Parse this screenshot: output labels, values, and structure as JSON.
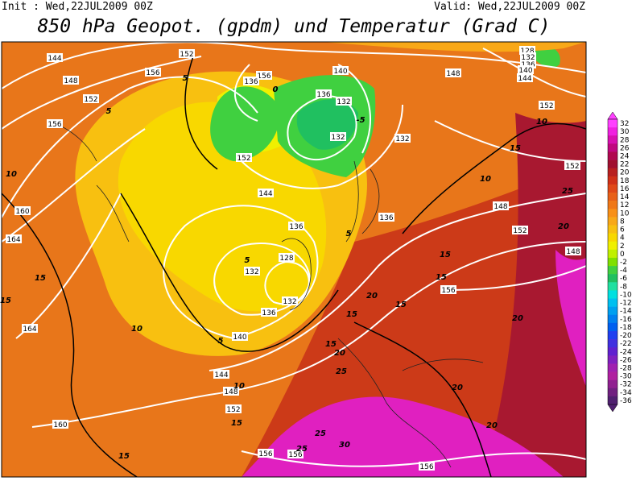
{
  "header": {
    "init": "Init : Wed,22JUL2009 00Z",
    "valid": "Valid: Wed,22JUL2009 00Z",
    "title": "850 hPa Geopot. (gpdm) und Temperatur (Grad C)"
  },
  "colorbar": {
    "labels": [
      32,
      30,
      28,
      26,
      24,
      22,
      20,
      18,
      16,
      14,
      12,
      10,
      8,
      6,
      4,
      2,
      0,
      -2,
      -4,
      -6,
      -8,
      -10,
      -12,
      -14,
      -16,
      -18,
      -20,
      -22,
      -24,
      -26,
      -28,
      -30,
      -32,
      -34,
      -36
    ],
    "colors": [
      "#ff40ff",
      "#f020e0",
      "#d810b0",
      "#c00880",
      "#b00850",
      "#a01030",
      "#b82020",
      "#d03018",
      "#e04818",
      "#e86018",
      "#f07818",
      "#f89018",
      "#f8a818",
      "#f8c010",
      "#f8d800",
      "#f0f000",
      "#c0f000",
      "#80e000",
      "#40d040",
      "#20c060",
      "#20e0a0",
      "#00e0e0",
      "#00c0f0",
      "#00a0f0",
      "#0080f0",
      "#0060f0",
      "#2040f0",
      "#4030e0",
      "#6020d0",
      "#8020c0",
      "#a020b0",
      "#b020a0",
      "#902090",
      "#702080",
      "#502070"
    ]
  },
  "geopotential_labels": [
    144,
    148,
    152,
    156,
    160,
    164,
    164,
    160,
    156,
    152,
    156,
    136,
    140,
    136,
    132,
    132,
    152,
    144,
    136,
    136,
    132,
    128,
    132,
    132,
    136,
    140,
    144,
    148,
    152,
    148,
    152,
    156,
    148,
    152,
    152,
    148,
    128,
    132,
    136,
    140,
    144,
    156,
    156,
    156
  ],
  "temperature_labels": [
    5,
    5,
    0,
    -5,
    10,
    15,
    15,
    10,
    5,
    10,
    15,
    15,
    10,
    15,
    10,
    25,
    20,
    15,
    15,
    20,
    15,
    15,
    15,
    20,
    25,
    20,
    20,
    20,
    25,
    30,
    25,
    5,
    5
  ]
}
